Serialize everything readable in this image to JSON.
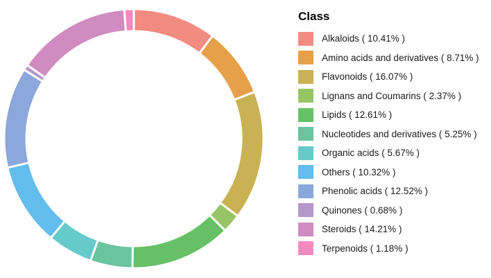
{
  "chart_data": {
    "type": "pie",
    "variant": "donut",
    "legend_title": "Class",
    "legend_position": "right",
    "slices": [
      {
        "label": "Alkaloids ( 10.41% )",
        "value": 10.41,
        "color": "#F28B82"
      },
      {
        "label": "Amino acids and derivatives ( 8.71% )",
        "value": 8.71,
        "color": "#E6A04A"
      },
      {
        "label": "Flavonoids ( 16.07% )",
        "value": 16.07,
        "color": "#C8B254"
      },
      {
        "label": "Lignans and Coumarins ( 2.37% )",
        "value": 2.37,
        "color": "#97C465"
      },
      {
        "label": "Lipids ( 12.61% )",
        "value": 12.61,
        "color": "#66C066"
      },
      {
        "label": "Nucleotides and derivatives ( 5.25% )",
        "value": 5.25,
        "color": "#6AC49E"
      },
      {
        "label": "Organic acids ( 5.67% )",
        "value": 5.67,
        "color": "#66CACA"
      },
      {
        "label": "Others ( 10.32% )",
        "value": 10.32,
        "color": "#63BDED"
      },
      {
        "label": "Phenolic acids ( 12.52% )",
        "value": 12.52,
        "color": "#8CA7DB"
      },
      {
        "label": "Quinones ( 0.68% )",
        "value": 0.68,
        "color": "#B498CC"
      },
      {
        "label": "Steroids ( 14.21% )",
        "value": 14.21,
        "color": "#D08BC0"
      },
      {
        "label": "Terpenoids ( 1.18% )",
        "value": 1.18,
        "color": "#F28ABF"
      }
    ]
  }
}
